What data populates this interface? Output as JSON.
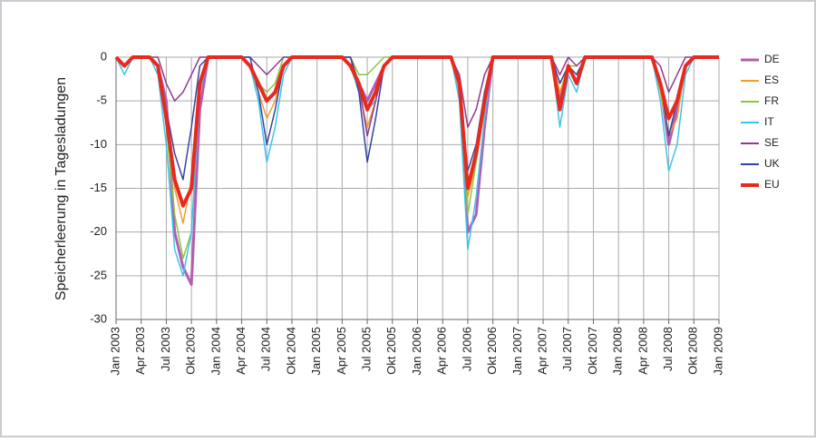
{
  "chart_data": {
    "type": "line",
    "y_label": "Speicherleerung in Tagesladungen",
    "x": [
      0,
      1,
      2,
      3,
      4,
      5,
      6,
      7,
      8,
      9,
      10,
      11,
      12,
      13,
      14,
      15,
      16,
      17,
      18,
      19,
      20,
      21,
      22,
      23,
      24,
      25,
      26,
      27,
      28,
      29,
      30,
      31,
      32,
      33,
      34,
      35,
      36,
      37,
      38,
      39,
      40,
      41,
      42,
      43,
      44,
      45,
      46,
      47,
      48,
      49,
      50,
      51,
      52,
      53,
      54,
      55,
      56,
      57,
      58,
      59,
      60,
      61,
      62,
      63,
      64,
      65,
      66,
      67,
      68,
      69,
      70,
      71,
      72
    ],
    "xlim": [
      0,
      72
    ],
    "xticks": [
      {
        "value": 0,
        "label": "Jan 2003"
      },
      {
        "value": 3,
        "label": "Apr 2003"
      },
      {
        "value": 6,
        "label": "Jul 2003"
      },
      {
        "value": 9,
        "label": "Okt 2003"
      },
      {
        "value": 12,
        "label": "Jan 2004"
      },
      {
        "value": 15,
        "label": "Apr 2004"
      },
      {
        "value": 18,
        "label": "Jul 2004"
      },
      {
        "value": 21,
        "label": "Okt 2004"
      },
      {
        "value": 24,
        "label": "Jan 2005"
      },
      {
        "value": 27,
        "label": "Apr 2005"
      },
      {
        "value": 30,
        "label": "Jul 2005"
      },
      {
        "value": 33,
        "label": "Okt 2005"
      },
      {
        "value": 36,
        "label": "Jan 2006"
      },
      {
        "value": 39,
        "label": "Apr 2006"
      },
      {
        "value": 42,
        "label": "Jul 2006"
      },
      {
        "value": 45,
        "label": "Okt 2006"
      },
      {
        "value": 48,
        "label": "Jan 2007"
      },
      {
        "value": 51,
        "label": "Apr 2007"
      },
      {
        "value": 54,
        "label": "Jul 2007"
      },
      {
        "value": 57,
        "label": "Okt 2007"
      },
      {
        "value": 60,
        "label": "Jan 2008"
      },
      {
        "value": 63,
        "label": "Apr 2008"
      },
      {
        "value": 66,
        "label": "Jul 2008"
      },
      {
        "value": 69,
        "label": "Okt 2008"
      },
      {
        "value": 72,
        "label": "Jan 2009"
      }
    ],
    "ylim": [
      -30,
      0
    ],
    "yticks": [
      0,
      -5,
      -10,
      -15,
      -20,
      -25,
      -30
    ],
    "grid": true,
    "legend": "right",
    "series": [
      {
        "name": "DE",
        "color": "#b45cb4",
        "width": 3,
        "values": [
          0,
          -1,
          0,
          0,
          0,
          -1,
          -5,
          -20,
          -24,
          -26,
          -6,
          0,
          0,
          0,
          0,
          0,
          -1,
          -3,
          -5,
          -4,
          -1,
          0,
          0,
          0,
          0,
          0,
          0,
          0,
          -1,
          -3,
          -5,
          -3,
          -1,
          0,
          0,
          0,
          0,
          0,
          0,
          0,
          0,
          -3,
          -20,
          -18,
          -8,
          0,
          0,
          0,
          0,
          0,
          0,
          0,
          0,
          -5,
          -1,
          -3,
          0,
          0,
          0,
          0,
          0,
          0,
          0,
          0,
          0,
          -3,
          -10,
          -6,
          -1,
          0,
          0,
          0,
          0
        ]
      },
      {
        "name": "ES",
        "color": "#f39c2c",
        "width": 1.5,
        "values": [
          0,
          -1,
          0,
          0,
          0,
          -1,
          -6,
          -15,
          -19,
          -14,
          -3,
          0,
          0,
          0,
          0,
          0,
          -1,
          -4,
          -7,
          -5,
          -1,
          0,
          0,
          0,
          0,
          0,
          0,
          0,
          -1,
          -4,
          -8,
          -5,
          -1,
          0,
          0,
          0,
          0,
          0,
          0,
          0,
          0,
          -4,
          -16,
          -12,
          -6,
          0,
          0,
          0,
          0,
          0,
          0,
          0,
          0,
          -4,
          -1,
          -2,
          0,
          0,
          0,
          0,
          0,
          0,
          0,
          0,
          0,
          -4,
          -9,
          -7,
          -1,
          0,
          0,
          0,
          0
        ]
      },
      {
        "name": "FR",
        "color": "#8cc63f",
        "width": 1.5,
        "values": [
          0,
          -1,
          0,
          0,
          0,
          -1,
          -8,
          -18,
          -23,
          -20,
          -4,
          0,
          0,
          0,
          0,
          0,
          -1,
          -3,
          -4,
          -3,
          0,
          0,
          0,
          0,
          0,
          0,
          0,
          0,
          0,
          -2,
          -2,
          -1,
          0,
          0,
          0,
          0,
          0,
          0,
          0,
          0,
          0,
          -3,
          -18,
          -12,
          -4,
          0,
          0,
          0,
          0,
          0,
          0,
          0,
          0,
          -3,
          -1,
          -1,
          0,
          0,
          0,
          0,
          0,
          0,
          0,
          0,
          0,
          -3,
          -7,
          -5,
          -1,
          0,
          0,
          0,
          0
        ]
      },
      {
        "name": "IT",
        "color": "#3cc4ec",
        "width": 1.5,
        "values": [
          0,
          -2,
          0,
          0,
          0,
          -2,
          -10,
          -22,
          -25,
          -20,
          -4,
          0,
          0,
          0,
          0,
          0,
          -1,
          -5,
          -12,
          -8,
          -2,
          0,
          0,
          0,
          0,
          0,
          0,
          0,
          -1,
          -4,
          -6,
          -5,
          -1,
          0,
          0,
          0,
          0,
          0,
          0,
          0,
          0,
          -5,
          -22,
          -16,
          -7,
          0,
          0,
          0,
          0,
          0,
          0,
          0,
          0,
          -8,
          -2,
          -4,
          0,
          0,
          0,
          0,
          0,
          0,
          0,
          0,
          0,
          -5,
          -13,
          -10,
          -2,
          0,
          0,
          0,
          0
        ]
      },
      {
        "name": "SE",
        "color": "#8e3a8e",
        "width": 1.5,
        "values": [
          0,
          -1,
          0,
          0,
          0,
          0,
          -3,
          -5,
          -4,
          -2,
          0,
          0,
          0,
          0,
          0,
          0,
          0,
          -1,
          -2,
          -1,
          0,
          0,
          0,
          0,
          0,
          0,
          0,
          0,
          0,
          -3,
          -9,
          -5,
          -1,
          0,
          0,
          0,
          0,
          0,
          0,
          0,
          0,
          -2,
          -8,
          -6,
          -2,
          0,
          0,
          0,
          0,
          0,
          0,
          0,
          0,
          -2,
          0,
          -1,
          0,
          0,
          0,
          0,
          0,
          0,
          0,
          0,
          0,
          -1,
          -4,
          -2,
          0,
          0,
          0,
          0,
          0
        ]
      },
      {
        "name": "UK",
        "color": "#3344a4",
        "width": 1.5,
        "values": [
          0,
          -1,
          0,
          0,
          0,
          -1,
          -6,
          -11,
          -14,
          -8,
          -1,
          0,
          0,
          0,
          0,
          0,
          0,
          -4,
          -10,
          -6,
          -1,
          0,
          0,
          0,
          0,
          0,
          0,
          0,
          0,
          -4,
          -12,
          -7,
          -1,
          0,
          0,
          0,
          0,
          0,
          0,
          0,
          0,
          -3,
          -13,
          -10,
          -4,
          0,
          0,
          0,
          0,
          0,
          0,
          0,
          0,
          -3,
          -1,
          -2,
          0,
          0,
          0,
          0,
          0,
          0,
          0,
          0,
          0,
          -3,
          -9,
          -5,
          -1,
          0,
          0,
          0,
          0
        ]
      },
      {
        "name": "EU",
        "color": "#e8291e",
        "width": 4,
        "values": [
          0,
          -1,
          0,
          0,
          0,
          -1,
          -7,
          -14,
          -17,
          -15,
          -3,
          0,
          0,
          0,
          0,
          0,
          -1,
          -3,
          -5,
          -4,
          -1,
          0,
          0,
          0,
          0,
          0,
          0,
          0,
          -1,
          -3,
          -6,
          -4,
          -1,
          0,
          0,
          0,
          0,
          0,
          0,
          0,
          0,
          -3,
          -15,
          -11,
          -5,
          0,
          0,
          0,
          0,
          0,
          0,
          0,
          0,
          -6,
          -1,
          -3,
          0,
          0,
          0,
          0,
          0,
          0,
          0,
          0,
          0,
          -3,
          -7,
          -5,
          -1,
          0,
          0,
          0,
          0
        ]
      }
    ]
  }
}
